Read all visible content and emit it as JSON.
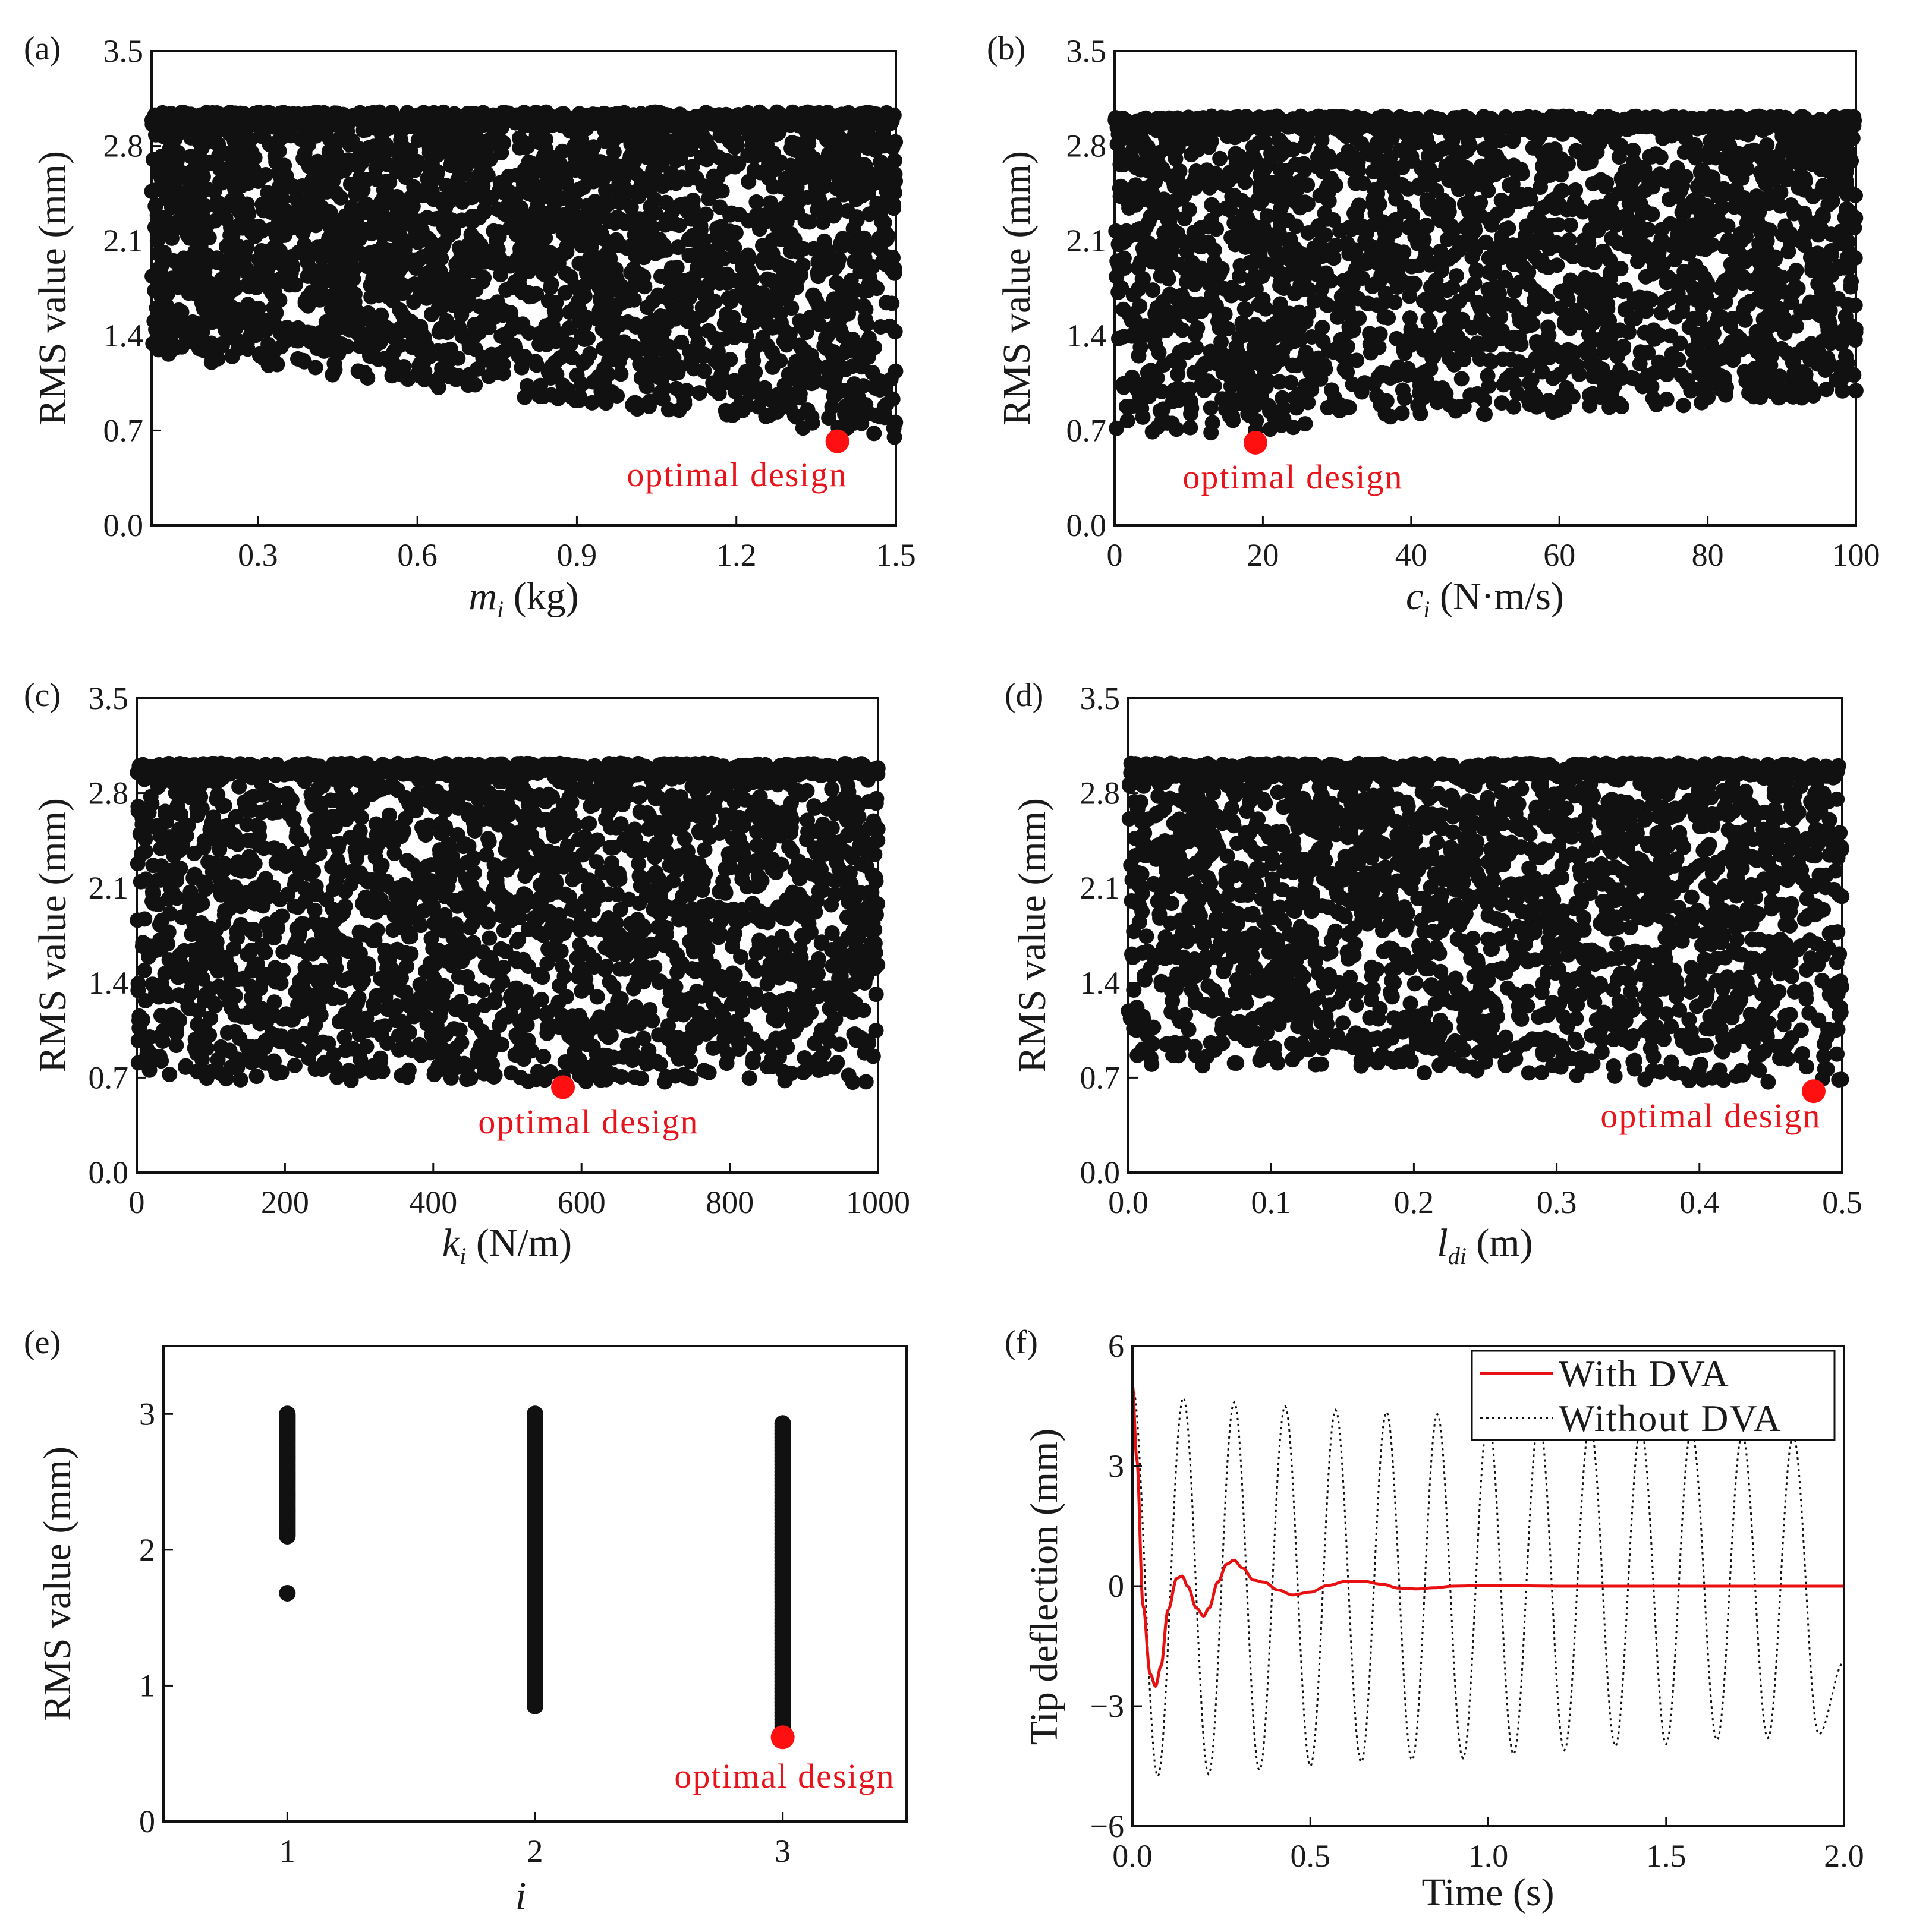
{
  "figure": {
    "colors": {
      "points": "#111111",
      "optimal": "#ff1010",
      "with_dva": "#e81010",
      "without_dva": "#111111",
      "annotation": "#e8141b"
    }
  },
  "chart_data": [
    {
      "id": "a",
      "panel_label": "(a)",
      "type": "scatter",
      "xlabel_main": "m",
      "xlabel_sub": "i",
      "xlabel_unit": " (kg)",
      "ylabel": "RMS value (mm)",
      "xlim": [
        0.1,
        1.5
      ],
      "ylim": [
        0.0,
        3.5
      ],
      "xticks": [
        0.3,
        0.6,
        0.9,
        1.2,
        1.5
      ],
      "xtick_labels": [
        "0.3",
        "0.6",
        "0.9",
        "1.2",
        "1.5"
      ],
      "yticks": [
        0.0,
        0.7,
        1.4,
        2.1,
        2.8,
        3.5
      ],
      "ytick_labels": [
        "0.0",
        "0.7",
        "1.4",
        "2.1",
        "2.8",
        "3.5"
      ],
      "cloud": {
        "count": 2600,
        "y_max": 3.05,
        "y_floor_left": 1.25,
        "y_floor_right": 0.64,
        "band_top": 3.05,
        "band_bottom": 2.95
      },
      "optimal": {
        "x": 1.39,
        "y": 0.62
      },
      "annotation": "optimal  design"
    },
    {
      "id": "b",
      "panel_label": "(b)",
      "type": "scatter",
      "xlabel_main": "c",
      "xlabel_sub": "i",
      "xlabel_unit": " (N·m/s)",
      "ylabel": "RMS value (mm)",
      "xlim": [
        0,
        100
      ],
      "ylim": [
        0.0,
        3.5
      ],
      "xticks": [
        0,
        20,
        40,
        60,
        80,
        100
      ],
      "xtick_labels": [
        "0",
        "20",
        "40",
        "60",
        "80",
        "100"
      ],
      "yticks": [
        0.0,
        0.7,
        1.4,
        2.1,
        2.8,
        3.5
      ],
      "ytick_labels": [
        "0.0",
        "0.7",
        "1.4",
        "2.1",
        "2.8",
        "3.5"
      ],
      "cloud": {
        "count": 2300,
        "y_max": 3.02,
        "y_floor_left": 0.64,
        "y_floor_right": 0.95,
        "band_top": 3.02,
        "band_bottom": 2.92
      },
      "optimal": {
        "x": 19,
        "y": 0.61
      },
      "annotation": "optimal  design"
    },
    {
      "id": "c",
      "panel_label": "(c)",
      "type": "scatter",
      "xlabel_main": "k",
      "xlabel_sub": "i",
      "xlabel_unit": " (N/m)",
      "ylabel": "RMS value (mm)",
      "xlim": [
        0,
        1000
      ],
      "ylim": [
        0.0,
        3.5
      ],
      "xticks": [
        0,
        200,
        400,
        600,
        800,
        1000
      ],
      "xtick_labels": [
        "0",
        "200",
        "400",
        "600",
        "800",
        "1000"
      ],
      "yticks": [
        0.0,
        0.7,
        1.4,
        2.1,
        2.8,
        3.5
      ],
      "ytick_labels": [
        "0.0",
        "0.7",
        "1.4",
        "2.1",
        "2.8",
        "3.5"
      ],
      "cloud": {
        "count": 2300,
        "y_max": 3.02,
        "y_floor_left": 0.68,
        "y_floor_right": 0.66,
        "band_top": 3.02,
        "band_bottom": 2.93
      },
      "optimal": {
        "x": 575,
        "y": 0.63
      },
      "annotation": "optimal  design"
    },
    {
      "id": "d",
      "panel_label": "(d)",
      "type": "scatter",
      "xlabel_main": "l",
      "xlabel_sub": "di",
      "xlabel_unit": " (m)",
      "ylabel": "RMS value (mm)",
      "xlim": [
        0.0,
        0.5
      ],
      "ylim": [
        0.0,
        3.5
      ],
      "xticks": [
        0.0,
        0.1,
        0.2,
        0.3,
        0.4,
        0.5
      ],
      "xtick_labels": [
        "0.0",
        "0.1",
        "0.2",
        "0.3",
        "0.4",
        "0.5"
      ],
      "yticks": [
        0.0,
        0.7,
        1.4,
        2.1,
        2.8,
        3.5
      ],
      "ytick_labels": [
        "0.0",
        "0.7",
        "1.4",
        "2.1",
        "2.8",
        "3.5"
      ],
      "cloud": {
        "count": 2200,
        "y_max": 3.02,
        "y_floor_left": 0.8,
        "y_floor_right": 0.64,
        "band_top": 3.02,
        "band_bottom": 2.92
      },
      "optimal": {
        "x": 0.48,
        "y": 0.6
      },
      "annotation": "optimal  design"
    },
    {
      "id": "e",
      "panel_label": "(e)",
      "type": "scatter",
      "xlabel_main": "i",
      "xlabel_sub": "",
      "xlabel_unit": "",
      "ylabel": "RMS value (mm)",
      "xlim": [
        0.5,
        3.5
      ],
      "ylim": [
        0,
        3.5
      ],
      "xticks": [
        1,
        2,
        3
      ],
      "xtick_labels": [
        "1",
        "2",
        "3"
      ],
      "yticks": [
        0,
        1,
        2,
        3
      ],
      "ytick_labels": [
        "0",
        "1",
        "2",
        "3"
      ],
      "columns": [
        {
          "x": 1,
          "y_min": 2.1,
          "y_max": 3.0,
          "outliers": [
            1.68
          ]
        },
        {
          "x": 2,
          "y_min": 0.85,
          "y_max": 3.0,
          "outliers": []
        },
        {
          "x": 3,
          "y_min": 0.65,
          "y_max": 2.93,
          "outliers": []
        }
      ],
      "optimal": {
        "x": 3,
        "y": 0.62
      },
      "annotation": "optimal  design"
    },
    {
      "id": "f",
      "panel_label": "(f)",
      "type": "line",
      "xlabel": "Time (s)",
      "ylabel": "Tip deflection (mm)",
      "xlim": [
        0.0,
        2.0
      ],
      "ylim": [
        -6,
        6
      ],
      "xticks": [
        0.0,
        0.5,
        1.0,
        1.5,
        2.0
      ],
      "xtick_labels": [
        "0.0",
        "0.5",
        "1.0",
        "1.5",
        "2.0"
      ],
      "yticks": [
        -6,
        -3,
        0,
        3,
        6
      ],
      "ytick_labels": [
        "−6",
        "−3",
        "0",
        "3",
        "6"
      ],
      "legend_position": "top-right",
      "series": [
        {
          "name": "With  DVA",
          "style": "solid",
          "points": [
            [
              0.0,
              5.0
            ],
            [
              0.012,
              3.2
            ],
            [
              0.03,
              -0.5
            ],
            [
              0.05,
              -2.2
            ],
            [
              0.065,
              -2.5
            ],
            [
              0.08,
              -2.0
            ],
            [
              0.1,
              -0.6
            ],
            [
              0.125,
              0.2
            ],
            [
              0.14,
              0.25
            ],
            [
              0.155,
              0.0
            ],
            [
              0.18,
              -0.55
            ],
            [
              0.2,
              -0.75
            ],
            [
              0.215,
              -0.55
            ],
            [
              0.24,
              0.1
            ],
            [
              0.265,
              0.55
            ],
            [
              0.285,
              0.65
            ],
            [
              0.31,
              0.45
            ],
            [
              0.34,
              0.15
            ],
            [
              0.37,
              0.1
            ],
            [
              0.41,
              -0.1
            ],
            [
              0.45,
              -0.22
            ],
            [
              0.5,
              -0.15
            ],
            [
              0.55,
              0.02
            ],
            [
              0.6,
              0.12
            ],
            [
              0.65,
              0.12
            ],
            [
              0.7,
              0.05
            ],
            [
              0.75,
              -0.05
            ],
            [
              0.8,
              -0.07
            ],
            [
              0.85,
              -0.04
            ],
            [
              0.9,
              0.0
            ],
            [
              1.0,
              0.02
            ],
            [
              1.2,
              0.0
            ],
            [
              1.5,
              0.0
            ],
            [
              1.8,
              0.0
            ],
            [
              2.0,
              0.0
            ]
          ]
        },
        {
          "name": "Without  DVA",
          "style": "dotted",
          "initial": 5.0,
          "min_amp": 4.7,
          "final_amp": 3.6,
          "period": 0.1429,
          "peaks": [
            [
              0.071,
              -4.75
            ],
            [
              0.143,
              4.7
            ],
            [
              0.214,
              -4.7
            ],
            [
              0.286,
              4.6
            ],
            [
              0.357,
              -4.6
            ],
            [
              0.429,
              4.5
            ],
            [
              0.5,
              -4.5
            ],
            [
              0.571,
              4.4
            ],
            [
              0.643,
              -4.4
            ],
            [
              0.714,
              4.35
            ],
            [
              0.786,
              -4.35
            ],
            [
              0.857,
              4.3
            ],
            [
              0.929,
              -4.3
            ],
            [
              1.0,
              4.2
            ],
            [
              1.071,
              -4.2
            ],
            [
              1.143,
              4.15
            ],
            [
              1.214,
              -4.1
            ],
            [
              1.286,
              4.05
            ],
            [
              1.357,
              -4.0
            ],
            [
              1.429,
              3.95
            ],
            [
              1.5,
              -3.95
            ],
            [
              1.571,
              3.9
            ],
            [
              1.643,
              -3.85
            ],
            [
              1.714,
              3.8
            ],
            [
              1.786,
              -3.8
            ],
            [
              1.857,
              3.75
            ],
            [
              1.929,
              -3.7
            ],
            [
              2.0,
              -1.9
            ]
          ]
        }
      ]
    }
  ]
}
